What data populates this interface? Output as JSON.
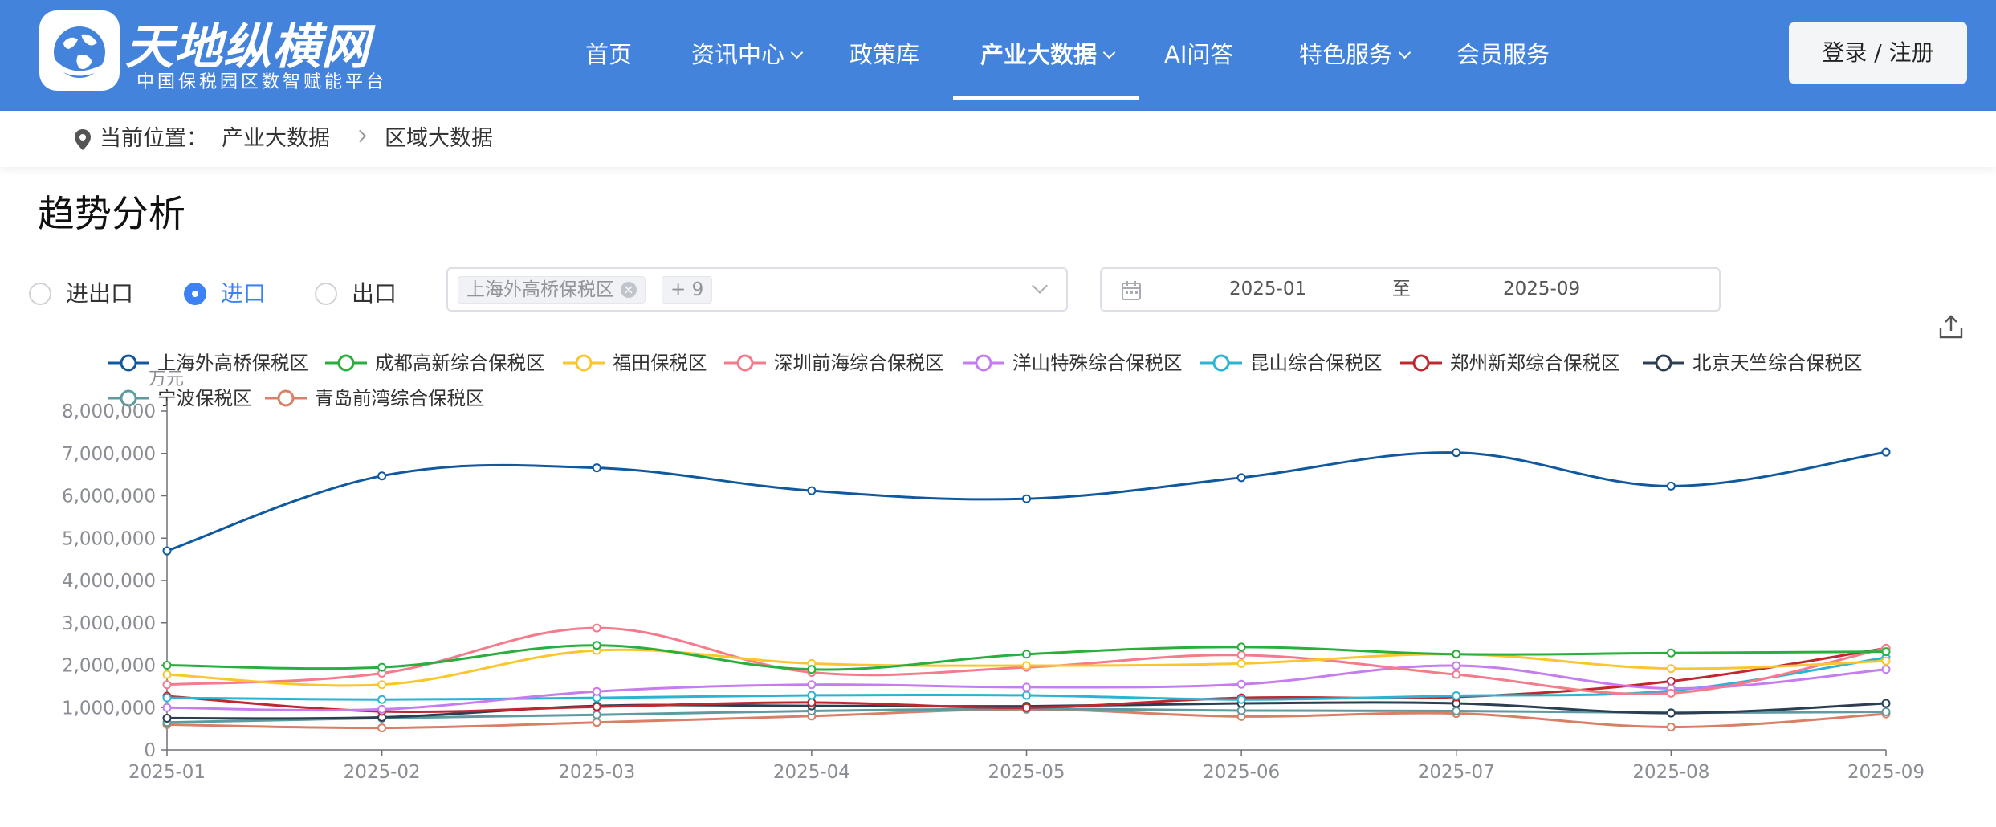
{
  "header": {
    "brand": "天地纵横网",
    "tagline": "中国保税园区数智赋能平台",
    "nav": [
      {
        "label": "首页",
        "has_menu": false
      },
      {
        "label": "资讯中心",
        "has_menu": true
      },
      {
        "label": "政策库",
        "has_menu": false
      },
      {
        "label": "产业大数据",
        "has_menu": true,
        "active": true
      },
      {
        "label": "AI问答",
        "has_menu": false
      },
      {
        "label": "特色服务",
        "has_menu": true
      },
      {
        "label": "会员服务",
        "has_menu": false
      }
    ],
    "login_label": "登录 / 注册"
  },
  "breadcrumb": {
    "prefix": "当前位置：",
    "items": [
      "产业大数据",
      "区域大数据"
    ]
  },
  "section_title": "趋势分析",
  "trade_type": {
    "options": [
      "进出口",
      "进口",
      "出口"
    ],
    "selected": "进口"
  },
  "zone_select": {
    "tag": "上海外高桥保税区",
    "more": "+ 9"
  },
  "date_range": {
    "start": "2025-01",
    "separator": "至",
    "end": "2025-09"
  },
  "colors": {
    "header_bg": "#4483db",
    "accent": "#3c82f6"
  },
  "chart_data": {
    "type": "line",
    "ylabel": "万元",
    "ylim": [
      0,
      8000000
    ],
    "yticks": [
      "0",
      "1,000,000",
      "2,000,000",
      "3,000,000",
      "4,000,000",
      "5,000,000",
      "6,000,000",
      "7,000,000",
      "8,000,000"
    ],
    "x": [
      "2025-01",
      "2025-02",
      "2025-03",
      "2025-04",
      "2025-05",
      "2025-06",
      "2025-07",
      "2025-08",
      "2025-09"
    ],
    "grid": false,
    "legend": "top",
    "series": [
      {
        "name": "上海外高桥保税区",
        "color": "#10599f",
        "values": [
          4700000,
          6470000,
          6660000,
          6120000,
          5930000,
          6430000,
          7020000,
          6230000,
          7030000
        ]
      },
      {
        "name": "成都高新综合保税区",
        "color": "#2aae3d",
        "values": [
          2000000,
          1950000,
          2470000,
          1900000,
          2260000,
          2430000,
          2260000,
          2290000,
          2320000
        ]
      },
      {
        "name": "福田保税区",
        "color": "#f9c62c",
        "values": [
          1780000,
          1540000,
          2350000,
          2040000,
          1990000,
          2040000,
          2260000,
          1920000,
          2100000
        ]
      },
      {
        "name": "深圳前海综合保税区",
        "color": "#f47a8c",
        "values": [
          1540000,
          1810000,
          2880000,
          1830000,
          1950000,
          2240000,
          1780000,
          1340000,
          2400000
        ]
      },
      {
        "name": "洋山特殊综合保税区",
        "color": "#c57cf0",
        "values": [
          1000000,
          960000,
          1380000,
          1540000,
          1480000,
          1550000,
          1990000,
          1450000,
          1900000
        ]
      },
      {
        "name": "昆山综合保税区",
        "color": "#2bb3d4",
        "values": [
          1230000,
          1190000,
          1230000,
          1290000,
          1290000,
          1190000,
          1280000,
          1400000,
          2180000
        ]
      },
      {
        "name": "郑州新郑综合保税区",
        "color": "#c0282f",
        "values": [
          1270000,
          910000,
          1020000,
          1120000,
          1000000,
          1230000,
          1250000,
          1620000,
          2400000
        ]
      },
      {
        "name": "北京天竺综合保税区",
        "color": "#2c3e52",
        "values": [
          750000,
          770000,
          1040000,
          1040000,
          1030000,
          1100000,
          1100000,
          870000,
          1100000
        ]
      },
      {
        "name": "宁波保税区",
        "color": "#5e9aa0",
        "values": [
          650000,
          750000,
          830000,
          920000,
          970000,
          930000,
          920000,
          880000,
          900000
        ]
      },
      {
        "name": "青岛前湾综合保税区",
        "color": "#d87f66",
        "values": [
          600000,
          520000,
          650000,
          800000,
          960000,
          790000,
          860000,
          540000,
          850000
        ]
      }
    ]
  }
}
